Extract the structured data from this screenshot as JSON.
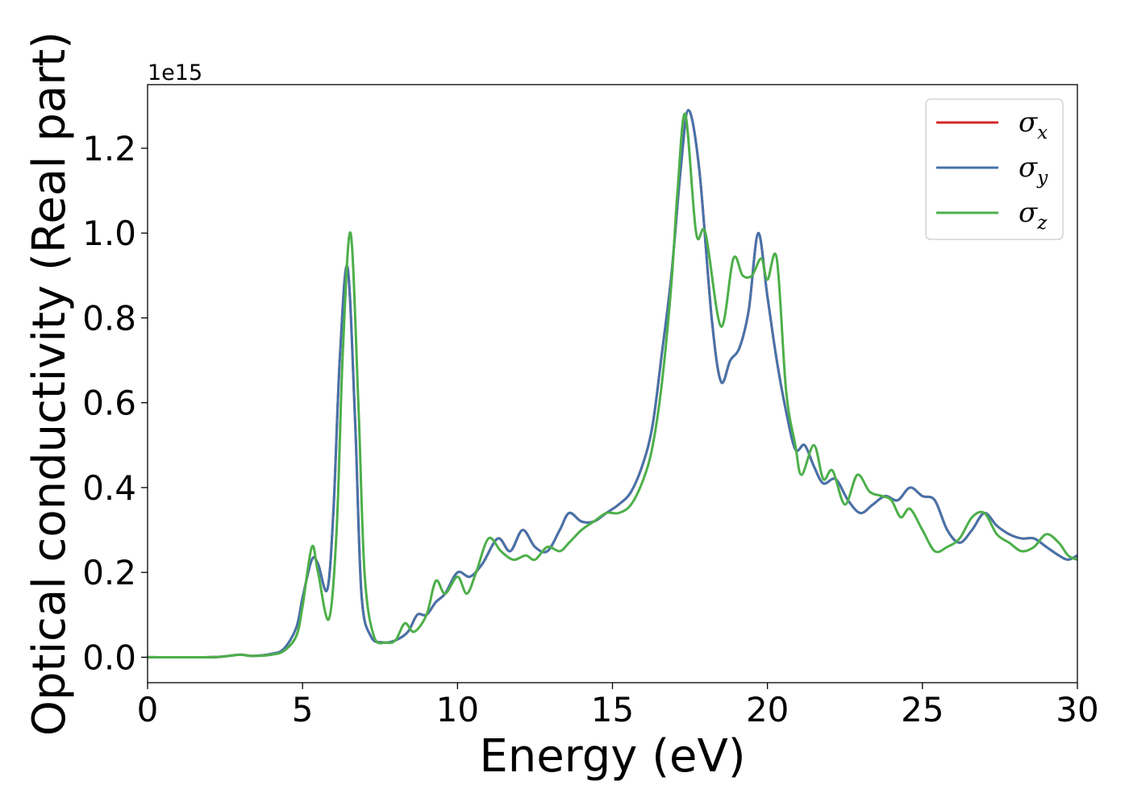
{
  "chart_data": {
    "type": "line",
    "title": "",
    "xlabel": "Energy (eV)",
    "ylabel": "Optical conductivity (Real part)",
    "y_offset_label": "1e15",
    "y_scale": 1000000000000000.0,
    "xlim": [
      0,
      30
    ],
    "ylim": [
      -0.06,
      1.35
    ],
    "x_ticks": [
      0,
      5,
      10,
      15,
      20,
      25,
      30
    ],
    "x_tick_labels": [
      "0",
      "5",
      "10",
      "15",
      "20",
      "25",
      "30"
    ],
    "y_ticks": [
      0.0,
      0.2,
      0.4,
      0.6,
      0.8,
      1.0,
      1.2
    ],
    "y_tick_labels": [
      "0.0",
      "0.2",
      "0.4",
      "0.6",
      "0.8",
      "1.0",
      "1.2"
    ],
    "grid": false,
    "legend_position": "top-right",
    "series": [
      {
        "name": "σx",
        "legend_symbol": "σ",
        "legend_subscript": "x",
        "color": "#d62728",
        "x": [
          0,
          2,
          2.6,
          3.0,
          3.4,
          4.0,
          4.4,
          4.8,
          5.0,
          5.3,
          5.5,
          5.8,
          6.0,
          6.2,
          6.45,
          6.7,
          6.9,
          7.2,
          7.6,
          8.0,
          8.4,
          8.7,
          9.0,
          9.3,
          9.6,
          10.0,
          10.4,
          10.8,
          11.3,
          11.7,
          12.1,
          12.5,
          12.9,
          13.3,
          13.6,
          14.0,
          14.4,
          14.8,
          15.2,
          15.6,
          16.0,
          16.3,
          16.6,
          16.9,
          17.2,
          17.45,
          17.8,
          18.2,
          18.5,
          18.8,
          19.1,
          19.4,
          19.7,
          20.0,
          20.3,
          20.6,
          20.9,
          21.2,
          21.5,
          21.8,
          22.2,
          22.6,
          23.0,
          23.4,
          23.8,
          24.2,
          24.6,
          25.0,
          25.4,
          25.8,
          26.2,
          26.6,
          27.0,
          27.4,
          27.8,
          28.2,
          28.6,
          29.0,
          29.4,
          29.7,
          30
        ],
        "values": [
          0,
          0,
          0.003,
          0.006,
          0.003,
          0.008,
          0.02,
          0.07,
          0.14,
          0.23,
          0.22,
          0.16,
          0.35,
          0.7,
          0.92,
          0.55,
          0.15,
          0.05,
          0.035,
          0.04,
          0.06,
          0.1,
          0.1,
          0.13,
          0.15,
          0.2,
          0.19,
          0.22,
          0.28,
          0.25,
          0.3,
          0.26,
          0.25,
          0.3,
          0.34,
          0.32,
          0.32,
          0.34,
          0.36,
          0.39,
          0.46,
          0.55,
          0.72,
          0.9,
          1.15,
          1.29,
          1.15,
          0.8,
          0.65,
          0.7,
          0.73,
          0.82,
          1.0,
          0.85,
          0.7,
          0.58,
          0.49,
          0.5,
          0.45,
          0.41,
          0.42,
          0.37,
          0.34,
          0.36,
          0.38,
          0.37,
          0.4,
          0.38,
          0.37,
          0.3,
          0.27,
          0.3,
          0.34,
          0.31,
          0.29,
          0.28,
          0.28,
          0.26,
          0.24,
          0.23,
          0.24
        ]
      },
      {
        "name": "σy",
        "legend_symbol": "σ",
        "legend_subscript": "y",
        "color": "#4573aa",
        "x": [
          0,
          2,
          2.6,
          3.0,
          3.4,
          4.0,
          4.4,
          4.8,
          5.0,
          5.3,
          5.5,
          5.8,
          6.0,
          6.2,
          6.45,
          6.7,
          6.9,
          7.2,
          7.6,
          8.0,
          8.4,
          8.7,
          9.0,
          9.3,
          9.6,
          10.0,
          10.4,
          10.8,
          11.3,
          11.7,
          12.1,
          12.5,
          12.9,
          13.3,
          13.6,
          14.0,
          14.4,
          14.8,
          15.2,
          15.6,
          16.0,
          16.3,
          16.6,
          16.9,
          17.2,
          17.45,
          17.8,
          18.2,
          18.5,
          18.8,
          19.1,
          19.4,
          19.7,
          20.0,
          20.3,
          20.6,
          20.9,
          21.2,
          21.5,
          21.8,
          22.2,
          22.6,
          23.0,
          23.4,
          23.8,
          24.2,
          24.6,
          25.0,
          25.4,
          25.8,
          26.2,
          26.6,
          27.0,
          27.4,
          27.8,
          28.2,
          28.6,
          29.0,
          29.4,
          29.7,
          30
        ],
        "values": [
          0,
          0,
          0.003,
          0.006,
          0.003,
          0.008,
          0.02,
          0.07,
          0.14,
          0.23,
          0.22,
          0.16,
          0.35,
          0.7,
          0.92,
          0.55,
          0.15,
          0.05,
          0.035,
          0.04,
          0.06,
          0.1,
          0.1,
          0.13,
          0.15,
          0.2,
          0.19,
          0.22,
          0.28,
          0.25,
          0.3,
          0.26,
          0.25,
          0.3,
          0.34,
          0.32,
          0.32,
          0.34,
          0.36,
          0.39,
          0.46,
          0.55,
          0.72,
          0.9,
          1.15,
          1.29,
          1.15,
          0.8,
          0.65,
          0.7,
          0.73,
          0.82,
          1.0,
          0.85,
          0.7,
          0.58,
          0.49,
          0.5,
          0.45,
          0.41,
          0.42,
          0.37,
          0.34,
          0.36,
          0.38,
          0.37,
          0.4,
          0.38,
          0.37,
          0.3,
          0.27,
          0.3,
          0.34,
          0.31,
          0.29,
          0.28,
          0.28,
          0.26,
          0.24,
          0.23,
          0.24
        ]
      },
      {
        "name": "σz",
        "legend_symbol": "σ",
        "legend_subscript": "z",
        "color": "#4daf4a",
        "x": [
          0,
          2,
          2.6,
          3.0,
          3.4,
          4.0,
          4.4,
          4.8,
          5.0,
          5.3,
          5.5,
          5.85,
          6.1,
          6.3,
          6.55,
          6.8,
          7.0,
          7.3,
          7.7,
          8.0,
          8.3,
          8.6,
          9.0,
          9.3,
          9.6,
          10.0,
          10.3,
          10.6,
          11.0,
          11.4,
          11.8,
          12.2,
          12.5,
          12.9,
          13.3,
          13.6,
          14.0,
          14.4,
          14.8,
          15.2,
          15.6,
          16.0,
          16.3,
          16.6,
          16.9,
          17.1,
          17.35,
          17.7,
          18.0,
          18.5,
          18.9,
          19.2,
          19.5,
          19.8,
          20.0,
          20.3,
          20.6,
          20.9,
          21.1,
          21.5,
          21.8,
          22.1,
          22.5,
          22.9,
          23.3,
          23.7,
          24.0,
          24.3,
          24.6,
          25.0,
          25.4,
          25.8,
          26.2,
          26.6,
          27.0,
          27.4,
          27.8,
          28.2,
          28.6,
          29.0,
          29.4,
          29.7,
          30
        ],
        "values": [
          0,
          0,
          0.003,
          0.006,
          0.003,
          0.006,
          0.015,
          0.05,
          0.12,
          0.26,
          0.2,
          0.09,
          0.3,
          0.72,
          1.0,
          0.6,
          0.2,
          0.05,
          0.035,
          0.04,
          0.08,
          0.06,
          0.1,
          0.18,
          0.15,
          0.19,
          0.15,
          0.2,
          0.28,
          0.25,
          0.23,
          0.24,
          0.23,
          0.26,
          0.25,
          0.27,
          0.3,
          0.32,
          0.34,
          0.34,
          0.36,
          0.42,
          0.5,
          0.65,
          0.88,
          1.1,
          1.28,
          1.0,
          1.0,
          0.78,
          0.94,
          0.9,
          0.9,
          0.94,
          0.89,
          0.94,
          0.63,
          0.5,
          0.43,
          0.5,
          0.42,
          0.44,
          0.36,
          0.43,
          0.39,
          0.38,
          0.37,
          0.33,
          0.35,
          0.3,
          0.25,
          0.26,
          0.28,
          0.33,
          0.34,
          0.29,
          0.27,
          0.25,
          0.26,
          0.29,
          0.27,
          0.24,
          0.23
        ]
      }
    ]
  }
}
